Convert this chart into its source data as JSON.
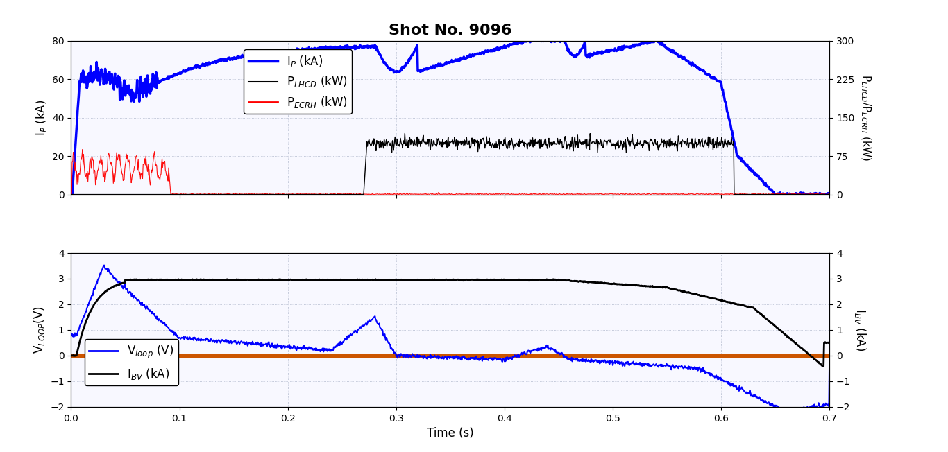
{
  "title": "Shot No. 9096",
  "title_fontsize": 16,
  "title_fontweight": "bold",
  "top": {
    "ylabel_left": "I$_P$ (kA)",
    "ylabel_right": "P$_{LHCD}$/P$_{ECRH}$ (kW)",
    "ylim_left": [
      0,
      80
    ],
    "ylim_right": [
      0,
      300
    ],
    "yticks_left": [
      0,
      20,
      40,
      60,
      80
    ],
    "yticks_right": [
      0,
      75,
      150,
      225,
      300
    ],
    "legend_labels": [
      "I$_P$ (kA)",
      "P$_{LHCD}$ (kW)",
      "P$_{ECRH}$ (kW)"
    ]
  },
  "bottom": {
    "ylabel_left": "V$_{LOOP}$(V)",
    "ylabel_right": "I$_{BV}$ (kA)",
    "ylim_left": [
      -2,
      4
    ],
    "ylim_right": [
      -2,
      4
    ],
    "yticks_left": [
      -2,
      -1,
      0,
      1,
      2,
      3,
      4
    ],
    "yticks_right": [
      -2,
      -1,
      0,
      1,
      2,
      3,
      4
    ],
    "legend_labels": [
      "V$_{loop}$ (V)",
      "I$_{BV}$ (kA)"
    ]
  },
  "xlabel": "Time (s)",
  "xlim": [
    0,
    0.7
  ],
  "xticks": [
    0,
    0.1,
    0.2,
    0.3,
    0.4,
    0.5,
    0.6,
    0.7
  ],
  "grid_color": "#b0b8cc",
  "background_color": "#f8f8ff",
  "figure_bg": "#ffffff",
  "orange_line_color": "#cc5500"
}
